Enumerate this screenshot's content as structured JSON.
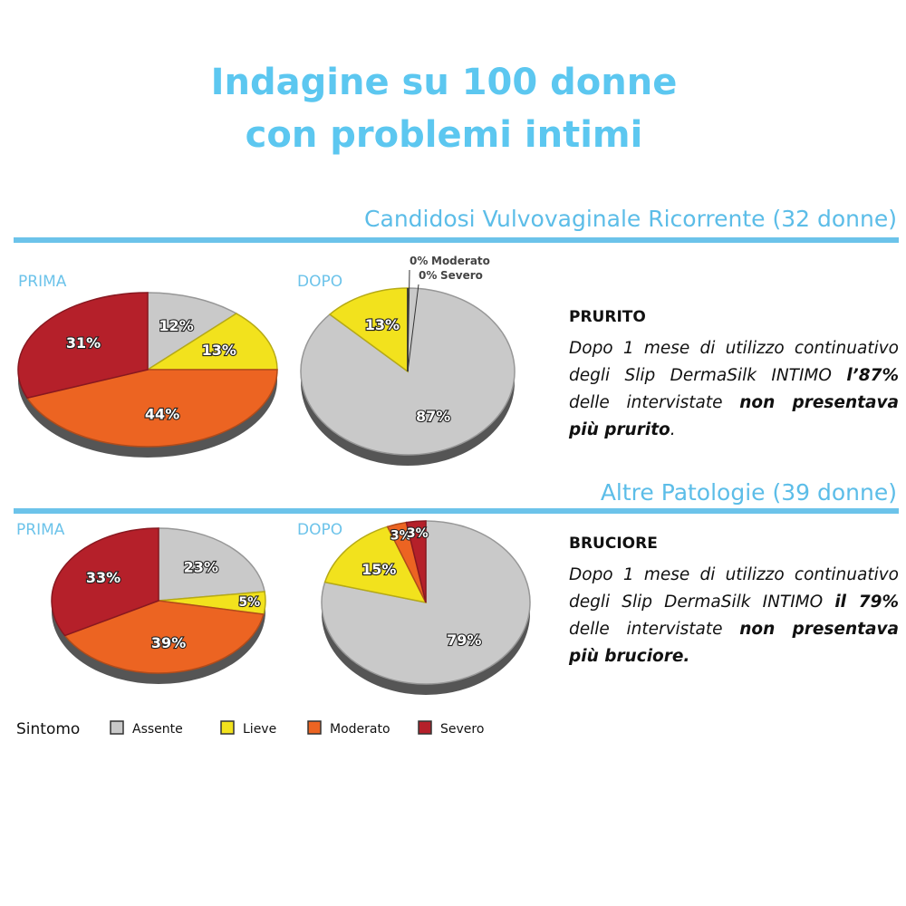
{
  "title_lines": [
    "Indagine su 100 donne",
    "con problemi intimi"
  ],
  "legend": {
    "title": "Sintomo",
    "items": [
      {
        "name": "Assente",
        "color": "#c9c9c9"
      },
      {
        "name": "Lieve",
        "color": "#f2e21d"
      },
      {
        "name": "Moderato",
        "color": "#ec6422"
      },
      {
        "name": "Severo",
        "color": "#b5202a"
      }
    ]
  },
  "sections": [
    {
      "heading": "Candidosi Vulvovaginale Ricorrente (32 donne)",
      "symptom": "PRURITO",
      "text": [
        {
          "text": "Dopo 1 mese di utilizzo continuativo degli Slip DermaSilk INTIMO ",
          "bold": false
        },
        {
          "text": "l’87%",
          "bold": true
        },
        {
          "text": " delle intervistate ",
          "bold": false
        },
        {
          "text": "non presentava più prurito",
          "bold": true
        },
        {
          "text": ".",
          "bold": false
        }
      ]
    },
    {
      "heading": "Altre Patologie (39 donne)",
      "symptom": "BRUCIORE",
      "text": [
        {
          "text": "Dopo 1 mese di utilizzo continuativo degli Slip DermaSilk INTIMO ",
          "bold": false
        },
        {
          "text": "il 79%",
          "bold": true
        },
        {
          "text": " delle intervistate ",
          "bold": false
        },
        {
          "text": "non presentava più bruciore.",
          "bold": true
        }
      ]
    }
  ],
  "chart_data": [
    {
      "type": "pie",
      "label": "PRIMA",
      "values": [
        12,
        13,
        44,
        31
      ],
      "value_labels": [
        "12%",
        "13%",
        "44%",
        "31%"
      ]
    },
    {
      "type": "pie",
      "label": "DOPO",
      "values": [
        87,
        13,
        0,
        0
      ],
      "value_labels": [
        "87%",
        "13%",
        "0%",
        "0%"
      ]
    },
    {
      "type": "pie",
      "label": "PRIMA",
      "values": [
        23,
        5,
        39,
        33
      ],
      "value_labels": [
        "23%",
        "5%",
        "39%",
        "33%"
      ]
    },
    {
      "type": "pie",
      "label": "DOPO",
      "values": [
        79,
        15,
        3,
        3
      ],
      "value_labels": [
        "79%",
        "15%",
        "3%",
        "3%"
      ]
    }
  ]
}
